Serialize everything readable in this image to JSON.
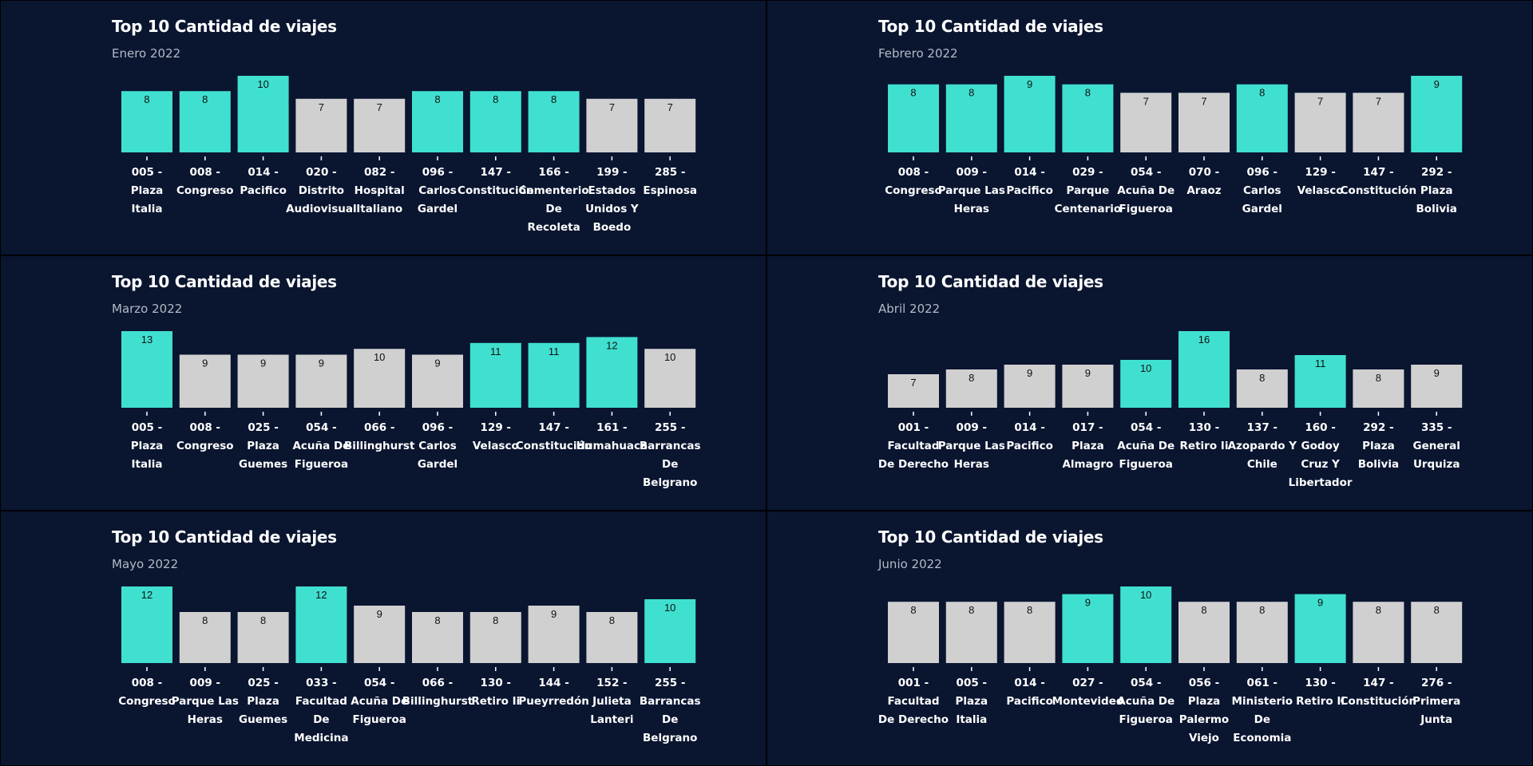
{
  "colors": {
    "page_background": "#000000",
    "panel_background": "#0a1530",
    "highlight_bar": "#40e0d0",
    "normal_bar": "#d0d0d0",
    "bar_label_text": "#111111",
    "tick_text": "#ffffff",
    "subtitle_text": "#b4bac6"
  },
  "chart_data": [
    {
      "type": "bar",
      "title": "Top 10 Cantidad de viajes",
      "subtitle": "Enero 2022",
      "categories": [
        "005 - Plaza Italia",
        "008 - Congreso",
        "014 - Pacifico",
        "020 - Distrito Audiovisual",
        "082 - Hospital Italiano",
        "096 - Carlos Gardel",
        "147 - Constitución",
        "166 - Cementerio De Recoleta",
        "199 - Estados Unidos Y Boedo",
        "285 - Espinosa"
      ],
      "tick_lines": [
        [
          "005 -",
          "Plaza",
          "Italia"
        ],
        [
          "008 -",
          "Congreso"
        ],
        [
          "014 -",
          "Pacifico"
        ],
        [
          "020 -",
          "Distrito",
          "Audiovisual"
        ],
        [
          "082 -",
          "Hospital",
          "Italiano"
        ],
        [
          "096 -",
          "Carlos",
          "Gardel"
        ],
        [
          "147 -",
          "Constitución"
        ],
        [
          "166 -",
          "Cementerio",
          "De",
          "Recoleta"
        ],
        [
          "199 -",
          "Estados",
          "Unidos Y",
          "Boedo"
        ],
        [
          "285 -",
          "Espinosa"
        ]
      ],
      "values": [
        8,
        8,
        10,
        7,
        7,
        8,
        8,
        8,
        7,
        7
      ],
      "highlighted": [
        true,
        true,
        true,
        false,
        false,
        true,
        true,
        true,
        false,
        false
      ],
      "ylim": [
        0,
        10
      ],
      "grid": false,
      "legend": "none"
    },
    {
      "type": "bar",
      "title": "Top 10 Cantidad de viajes",
      "subtitle": "Febrero 2022",
      "categories": [
        "008 - Congreso",
        "009 - Parque Las Heras",
        "014 - Pacifico",
        "029 - Parque Centenario",
        "054 - Acuña De Figueroa",
        "070 - Araoz",
        "096 - Carlos Gardel",
        "129 - Velasco",
        "147 - Constitución",
        "292 - Plaza Bolivia"
      ],
      "tick_lines": [
        [
          "008 -",
          "Congreso"
        ],
        [
          "009 -",
          "Parque Las",
          "Heras"
        ],
        [
          "014 -",
          "Pacifico"
        ],
        [
          "029 -",
          "Parque",
          "Centenario"
        ],
        [
          "054 -",
          "Acuña De",
          "Figueroa"
        ],
        [
          "070 -",
          "Araoz"
        ],
        [
          "096 -",
          "Carlos",
          "Gardel"
        ],
        [
          "129 -",
          "Velasco"
        ],
        [
          "147 -",
          "Constitución"
        ],
        [
          "292 -",
          "Plaza",
          "Bolivia"
        ]
      ],
      "values": [
        8,
        8,
        9,
        8,
        7,
        7,
        8,
        7,
        7,
        9
      ],
      "highlighted": [
        true,
        true,
        true,
        true,
        false,
        false,
        true,
        false,
        false,
        true
      ],
      "ylim": [
        0,
        9
      ],
      "grid": false,
      "legend": "none"
    },
    {
      "type": "bar",
      "title": "Top 10 Cantidad de viajes",
      "subtitle": "Marzo 2022",
      "categories": [
        "005 - Plaza Italia",
        "008 - Congreso",
        "025 - Plaza Guemes",
        "054 - Acuña De Figueroa",
        "066 - Billinghurst",
        "096 - Carlos Gardel",
        "129 - Velasco",
        "147 - Constitución",
        "161 - Humahuaca",
        "255 - Barrancas De Belgrano"
      ],
      "tick_lines": [
        [
          "005 -",
          "Plaza",
          "Italia"
        ],
        [
          "008 -",
          "Congreso"
        ],
        [
          "025 -",
          "Plaza",
          "Guemes"
        ],
        [
          "054 -",
          "Acuña De",
          "Figueroa"
        ],
        [
          "066 -",
          "Billinghurst"
        ],
        [
          "096 -",
          "Carlos",
          "Gardel"
        ],
        [
          "129 -",
          "Velasco"
        ],
        [
          "147 -",
          "Constitución"
        ],
        [
          "161 -",
          "Humahuaca"
        ],
        [
          "255 -",
          "Barrancas",
          "De",
          "Belgrano"
        ]
      ],
      "values": [
        13,
        9,
        9,
        9,
        10,
        9,
        11,
        11,
        12,
        10
      ],
      "highlighted": [
        true,
        false,
        false,
        false,
        false,
        false,
        true,
        true,
        true,
        false
      ],
      "ylim": [
        0,
        13
      ],
      "grid": false,
      "legend": "none"
    },
    {
      "type": "bar",
      "title": "Top 10 Cantidad de viajes",
      "subtitle": "Abril 2022",
      "categories": [
        "001 - Facultad De Derecho",
        "009 - Parque Las Heras",
        "014 - Pacifico",
        "017 - Plaza Almagro",
        "054 - Acuña De Figueroa",
        "130 - Retiro Ii",
        "137 - Azopardo Y Chile",
        "160 - Godoy Cruz Y Libertador",
        "292 - Plaza Bolivia",
        "335 - General Urquiza"
      ],
      "tick_lines": [
        [
          "001 -",
          "Facultad",
          "De Derecho"
        ],
        [
          "009 -",
          "Parque Las",
          "Heras"
        ],
        [
          "014 -",
          "Pacifico"
        ],
        [
          "017 -",
          "Plaza",
          "Almagro"
        ],
        [
          "054 -",
          "Acuña De",
          "Figueroa"
        ],
        [
          "130 -",
          "Retiro Ii"
        ],
        [
          "137 -",
          "Azopardo Y",
          "Chile"
        ],
        [
          "160 -",
          "Godoy",
          "Cruz Y",
          "Libertador"
        ],
        [
          "292 -",
          "Plaza",
          "Bolivia"
        ],
        [
          "335 -",
          "General",
          "Urquiza"
        ]
      ],
      "values": [
        7,
        8,
        9,
        9,
        10,
        16,
        8,
        11,
        8,
        9
      ],
      "highlighted": [
        false,
        false,
        false,
        false,
        true,
        true,
        false,
        true,
        false,
        false
      ],
      "ylim": [
        0,
        16
      ],
      "grid": false,
      "legend": "none"
    },
    {
      "type": "bar",
      "title": "Top 10 Cantidad de viajes",
      "subtitle": "Mayo 2022",
      "categories": [
        "008 - Congreso",
        "009 - Parque Las Heras",
        "025 - Plaza Guemes",
        "033 - Facultad De Medicina",
        "054 - Acuña De Figueroa",
        "066 - Billinghurst",
        "130 - Retiro Ii",
        "144 - Pueyrredón",
        "152 - Julieta Lanteri",
        "255 - Barrancas De Belgrano"
      ],
      "tick_lines": [
        [
          "008 -",
          "Congreso"
        ],
        [
          "009 -",
          "Parque Las",
          "Heras"
        ],
        [
          "025 -",
          "Plaza",
          "Guemes"
        ],
        [
          "033 -",
          "Facultad",
          "De",
          "Medicina"
        ],
        [
          "054 -",
          "Acuña De",
          "Figueroa"
        ],
        [
          "066 -",
          "Billinghurst"
        ],
        [
          "130 -",
          "Retiro Ii"
        ],
        [
          "144 -",
          "Pueyrredón"
        ],
        [
          "152 -",
          "Julieta",
          "Lanteri"
        ],
        [
          "255 -",
          "Barrancas",
          "De",
          "Belgrano"
        ]
      ],
      "values": [
        12,
        8,
        8,
        12,
        9,
        8,
        8,
        9,
        8,
        10
      ],
      "highlighted": [
        true,
        false,
        false,
        true,
        false,
        false,
        false,
        false,
        false,
        true
      ],
      "ylim": [
        0,
        12
      ],
      "grid": false,
      "legend": "none"
    },
    {
      "type": "bar",
      "title": "Top 10 Cantidad de viajes",
      "subtitle": "Junio 2022",
      "categories": [
        "001 - Facultad De Derecho",
        "005 - Plaza Italia",
        "014 - Pacifico",
        "027 - Montevideo",
        "054 - Acuña De Figueroa",
        "056 - Plaza Palermo Viejo",
        "061 - Ministerio De Economia",
        "130 - Retiro Ii",
        "147 - Constitución",
        "276 - Primera Junta"
      ],
      "tick_lines": [
        [
          "001 -",
          "Facultad",
          "De Derecho"
        ],
        [
          "005 -",
          "Plaza",
          "Italia"
        ],
        [
          "014 -",
          "Pacifico"
        ],
        [
          "027 -",
          "Montevideo"
        ],
        [
          "054 -",
          "Acuña De",
          "Figueroa"
        ],
        [
          "056 -",
          "Plaza",
          "Palermo",
          "Viejo"
        ],
        [
          "061 -",
          "Ministerio",
          "De",
          "Economia"
        ],
        [
          "130 -",
          "Retiro Ii"
        ],
        [
          "147 -",
          "Constitución"
        ],
        [
          "276 -",
          "Primera",
          "Junta"
        ]
      ],
      "values": [
        8,
        8,
        8,
        9,
        10,
        8,
        8,
        9,
        8,
        8
      ],
      "highlighted": [
        false,
        false,
        false,
        true,
        true,
        false,
        false,
        true,
        false,
        false
      ],
      "ylim": [
        0,
        10
      ],
      "grid": false,
      "legend": "none"
    }
  ]
}
